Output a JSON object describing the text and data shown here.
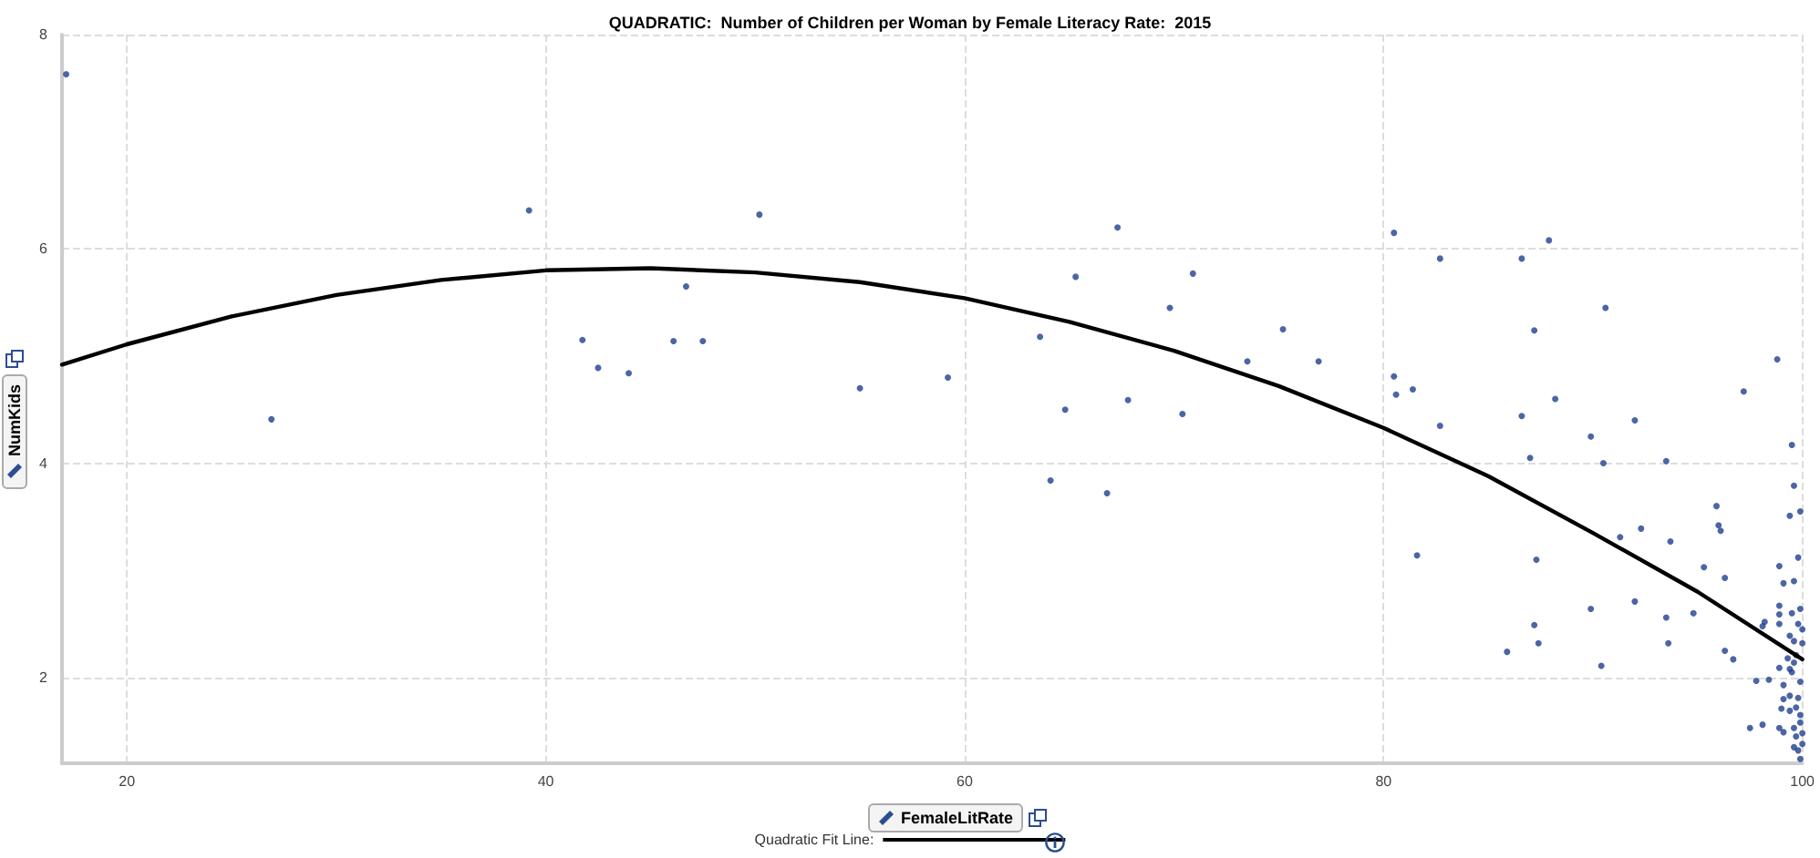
{
  "chart_data": {
    "type": "scatter",
    "title": "QUADRATIC:  Number of Children per Woman by Female Literacy Rate:  2015",
    "xlabel": "FemaleLitRate",
    "ylabel": "NumKids",
    "xlim": [
      16.9,
      100
    ],
    "xticks": [
      20,
      40,
      60,
      80,
      100
    ],
    "ylim": [
      1.2,
      8
    ],
    "yticks": [
      2,
      4,
      6,
      8
    ],
    "grid": true,
    "legend": "bottom",
    "marker": "circle",
    "series": [
      {
        "type": "scatter",
        "color": "#1f3f8f",
        "x": [
          17.1,
          39.2,
          26.9,
          41.75,
          42.5,
          43.96,
          46.1,
          46.7,
          47.5,
          50.2,
          55.0,
          59.2,
          67.3,
          65.3,
          70.9,
          69.8,
          63.6,
          75.2,
          73.5,
          76.9,
          64.8,
          67.8,
          70.4,
          80.5,
          82.7,
          86.6,
          87.9,
          90.6,
          87.2,
          80.5,
          80.6,
          81.4,
          88.2,
          97.2,
          98.8,
          82.7,
          86.6,
          92.0,
          64.1,
          66.8,
          89.9,
          87.0,
          90.5,
          93.5,
          99.5,
          99.6,
          99.4,
          99.9,
          95.9,
          96.0,
          96.1,
          92.3,
          93.7,
          91.3,
          81.6,
          87.3,
          99.8,
          95.3,
          96.3,
          98.9,
          99.1,
          99.6,
          89.9,
          92.0,
          93.5,
          94.8,
          87.2,
          87.4,
          93.6,
          85.9,
          90.4,
          96.3,
          96.7,
          98.1,
          98.2,
          98.9,
          98.9,
          99.5,
          99.9,
          98.9,
          99.8,
          99.4,
          100,
          99.6,
          100,
          99.3,
          99.7,
          99.6,
          99.4,
          98.9,
          97.8,
          98.4,
          99.5,
          99.9,
          99.1,
          99.4,
          99.1,
          99.8,
          99.0,
          99.4,
          99.7,
          99.9,
          99.9,
          99.6,
          98.9,
          99.1,
          97.5,
          98.1,
          100,
          99.6,
          99.8,
          100,
          99.9,
          99.7
        ],
        "values": [
          7.63,
          6.36,
          4.41,
          5.15,
          4.89,
          4.84,
          5.14,
          5.65,
          5.14,
          6.32,
          4.7,
          4.8,
          6.2,
          5.74,
          5.77,
          5.45,
          5.18,
          5.25,
          4.95,
          4.95,
          4.5,
          4.59,
          4.46,
          6.15,
          5.91,
          5.91,
          6.08,
          5.45,
          5.24,
          4.81,
          4.64,
          4.69,
          4.6,
          4.67,
          4.97,
          4.35,
          4.44,
          4.4,
          3.84,
          3.72,
          4.25,
          4.05,
          4.0,
          4.02,
          4.17,
          3.79,
          3.51,
          3.55,
          3.6,
          3.42,
          3.37,
          3.39,
          3.27,
          3.31,
          3.14,
          3.1,
          3.12,
          3.03,
          2.93,
          3.04,
          2.88,
          2.9,
          2.64,
          2.71,
          2.56,
          2.6,
          2.49,
          2.32,
          2.32,
          2.24,
          2.11,
          2.25,
          2.17,
          2.48,
          2.52,
          2.67,
          2.59,
          2.6,
          2.64,
          2.5,
          2.5,
          2.39,
          2.45,
          2.34,
          2.32,
          2.18,
          2.21,
          2.14,
          2.08,
          2.09,
          1.97,
          1.98,
          2.05,
          1.96,
          1.93,
          1.83,
          1.8,
          1.81,
          1.71,
          1.69,
          1.72,
          1.65,
          1.58,
          1.53,
          1.53,
          1.49,
          1.53,
          1.56,
          1.48,
          1.35,
          1.32,
          1.38,
          1.24,
          1.45
        ]
      },
      {
        "type": "line",
        "name": "Quadratic Fit Line:",
        "color": "#000000",
        "marker": "none",
        "line_style": "solid",
        "x": [
          16.9,
          20,
          25,
          30,
          35,
          40,
          45,
          50,
          55,
          60,
          65,
          70,
          75,
          80,
          85,
          90,
          95,
          100
        ],
        "values": [
          4.92,
          5.11,
          5.37,
          5.57,
          5.71,
          5.8,
          5.82,
          5.78,
          5.69,
          5.54,
          5.32,
          5.05,
          4.72,
          4.33,
          3.88,
          3.35,
          2.8,
          2.17
        ]
      }
    ]
  }
}
